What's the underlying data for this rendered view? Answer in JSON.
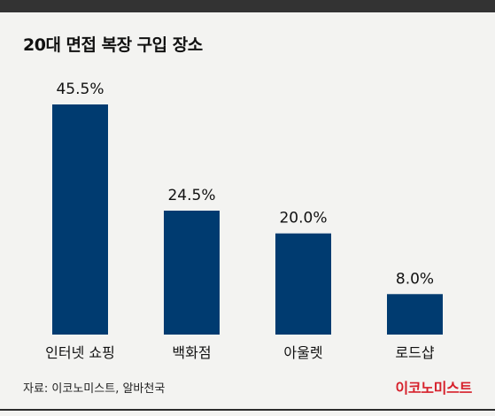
{
  "title": "20대 면접 복장 구입 장소",
  "chart_data": {
    "type": "bar",
    "categories": [
      "인터넷 쇼핑",
      "백화점",
      "아울렛",
      "로드샵"
    ],
    "values": [
      45.5,
      24.5,
      20.0,
      8.0
    ],
    "value_labels": [
      "45.5%",
      "24.5%",
      "20.0%",
      "8.0%"
    ],
    "title": "20대 면접 복장 구입 장소",
    "xlabel": "",
    "ylabel": "",
    "ylim": [
      0,
      45.5
    ],
    "grid": false,
    "legend": "none",
    "bar_color": "#003b70"
  },
  "footer": {
    "source": "자료: 이코노미스트, 알바천국",
    "brand": "이코노미스트"
  },
  "colors": {
    "brand_red": "#d6202b",
    "top_band": "#333333",
    "background": "#f3f3f1"
  }
}
